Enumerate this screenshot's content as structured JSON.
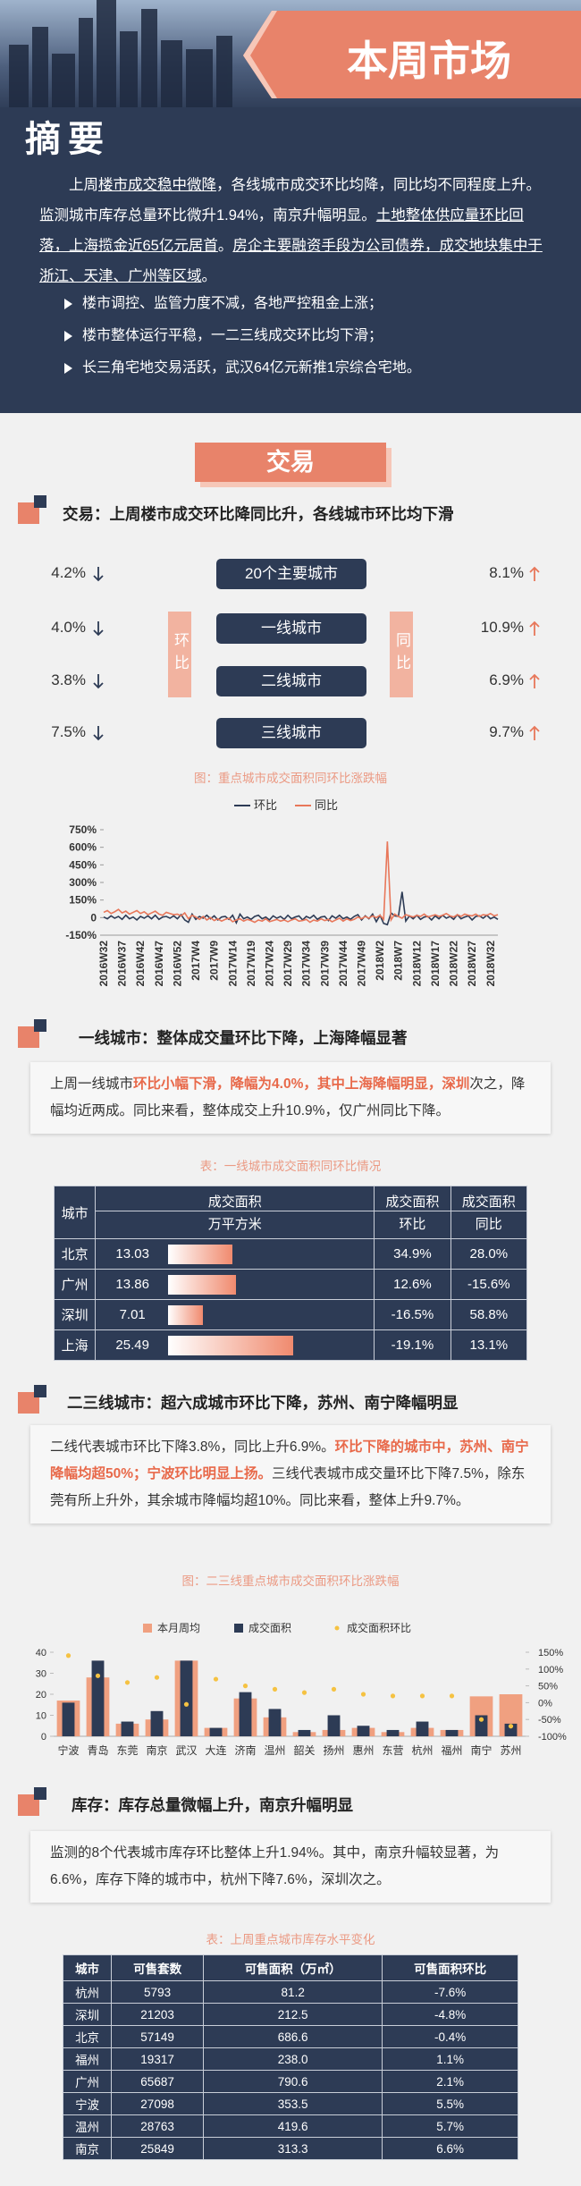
{
  "header": {
    "title": "本周市场",
    "subtitle": "摘要"
  },
  "summary": {
    "paragraph": [
      {
        "text": "上周"
      },
      {
        "text": "楼市成交稳中微降",
        "underline": true
      },
      {
        "text": "，各线城市成交环比均降，同比均不同程度上升。监测城市库存总量环比微升1.94%，南京升幅明显。"
      },
      {
        "text": "土地整体供应量环比回落，上海揽金近65亿元居首",
        "underline": true
      },
      {
        "text": "。"
      },
      {
        "text": "房企主要融资手段为公司债券，成交地块集中于浙江、天津、广州等区域",
        "underline": true
      },
      {
        "text": "。"
      }
    ],
    "bullets": [
      "楼市调控、监管力度不减，各地严控租金上涨；",
      "楼市整体运行平稳，一二三线成交环比均下滑；",
      "长三角宅地交易活跃，武汉64亿元新推1宗综合宅地。"
    ]
  },
  "trade": {
    "tab": "交易",
    "heading": "交易：上周楼市成交环比降同比升，各线城市环比均下滑",
    "mom_tag": "环比",
    "yoy_tag": "同比",
    "rows": [
      {
        "mom": "4.2%",
        "label": "20个主要城市",
        "yoy": "8.1%"
      },
      {
        "mom": "4.0%",
        "label": "一线城市",
        "yoy": "10.9%"
      },
      {
        "mom": "3.8%",
        "label": "二线城市",
        "yoy": "6.9%"
      },
      {
        "mom": "7.5%",
        "label": "三线城市",
        "yoy": "9.7%"
      }
    ],
    "caption": "图：重点城市成交面积同环比涨跌幅"
  },
  "chart_data": [
    {
      "type": "line",
      "categories": [
        "2016W32",
        null,
        null,
        null,
        null,
        "2016W37",
        null,
        null,
        null,
        null,
        "2016W42",
        null,
        null,
        null,
        null,
        "2016W47",
        null,
        null,
        null,
        null,
        "2016W52",
        null,
        null,
        null,
        null,
        "2017W4",
        null,
        null,
        null,
        null,
        "2017W9",
        null,
        null,
        null,
        null,
        "2017W14",
        null,
        null,
        null,
        null,
        "2017W19",
        null,
        null,
        null,
        null,
        "2017W24",
        null,
        null,
        null,
        null,
        "2017W29",
        null,
        null,
        null,
        null,
        "2017W34",
        null,
        null,
        null,
        null,
        "2017W39",
        null,
        null,
        null,
        null,
        "2017W44",
        null,
        null,
        null,
        null,
        "2017W49",
        null,
        null,
        null,
        null,
        "2018W2",
        null,
        null,
        null,
        null,
        "2018W7",
        null,
        null,
        null,
        null,
        "2018W12",
        null,
        null,
        null,
        null,
        "2018W17",
        null,
        null,
        null,
        null,
        "2018W22",
        null,
        null,
        null,
        null,
        "2018W27",
        null,
        null,
        null,
        null,
        "2018W32",
        null,
        null
      ],
      "series": [
        {
          "name": "环比",
          "color": "#2d3b55",
          "values": [
            5,
            -10,
            15,
            -5,
            10,
            -15,
            20,
            -10,
            5,
            -20,
            10,
            -5,
            15,
            -10,
            20,
            -15,
            5,
            10,
            -5,
            15,
            -10,
            25,
            -20,
            -40,
            30,
            -15,
            10,
            -5,
            20,
            -10,
            15,
            -20,
            5,
            10,
            -15,
            20,
            -45,
            30,
            -10,
            5,
            -15,
            10,
            20,
            -10,
            5,
            -20,
            15,
            -5,
            10,
            -15,
            20,
            -10,
            5,
            15,
            -20,
            10,
            -5,
            20,
            -15,
            5,
            10,
            -25,
            15,
            -5,
            20,
            -10,
            5,
            -15,
            10,
            25,
            -20,
            15,
            -10,
            30,
            -35,
            20,
            -50,
            -60,
            40,
            15,
            10,
            220,
            -30,
            15,
            -10,
            20,
            -15,
            5,
            10,
            -20,
            15,
            -10,
            20,
            -5,
            10,
            -15,
            25,
            -10,
            5,
            15,
            -20,
            10,
            15,
            -5,
            20,
            -10,
            5,
            -15
          ]
        },
        {
          "name": "同比",
          "color": "#e8775a",
          "values": [
            45,
            60,
            35,
            50,
            70,
            40,
            55,
            30,
            45,
            60,
            35,
            50,
            25,
            40,
            55,
            30,
            20,
            45,
            35,
            25,
            30,
            15,
            40,
            -10,
            20,
            5,
            -15,
            10,
            -20,
            0,
            -25,
            -10,
            -30,
            -15,
            -5,
            -35,
            -20,
            -10,
            -30,
            -15,
            -25,
            -40,
            -20,
            -30,
            -10,
            -35,
            -25,
            -15,
            -30,
            -20,
            -35,
            -20,
            -10,
            -30,
            -25,
            -15,
            -40,
            -20,
            -30,
            -10,
            -25,
            -15,
            -35,
            -20,
            -5,
            -30,
            -10,
            -25,
            -15,
            5,
            -10,
            10,
            -5,
            15,
            0,
            20,
            -15,
            650,
            -20,
            30,
            10,
            -5,
            25,
            15,
            5,
            20,
            10,
            30,
            5,
            15,
            25,
            10,
            20,
            35,
            15,
            5,
            25,
            10,
            30,
            20,
            15,
            30,
            10,
            25,
            20,
            35,
            15,
            25
          ]
        }
      ],
      "ylim": [
        -150,
        750
      ],
      "yticks": [
        {
          "value": -150,
          "label": "-150%"
        },
        0,
        {
          "value": 150,
          "label": "150%"
        },
        {
          "value": 300,
          "label": "300%"
        },
        {
          "value": 450,
          "label": "450%"
        },
        {
          "value": 600,
          "label": "600%"
        },
        {
          "value": 750,
          "label": "750%"
        }
      ]
    },
    {
      "type": "bar",
      "categories": [
        "宁波",
        "青岛",
        "东莞",
        "南京",
        "武汉",
        "大连",
        "济南",
        "温州",
        "韶关",
        "扬州",
        "惠州",
        "东营",
        "杭州",
        "福州",
        "南宁",
        "苏州"
      ],
      "series": [
        {
          "name": "本月周均",
          "color": "#f0a080",
          "values": [
            17,
            28,
            6,
            8,
            36,
            4,
            18,
            9,
            2,
            3,
            4,
            2,
            4,
            3,
            19,
            20
          ]
        },
        {
          "name": "成交面积",
          "color": "#2d3b55",
          "values": [
            16,
            36,
            7,
            12,
            36,
            4,
            21,
            13,
            3,
            10,
            5,
            3,
            7,
            3,
            10,
            6
          ]
        },
        {
          "name": "成交面积环比",
          "color": "#f5c242",
          "axis": "y2",
          "type": "scatter",
          "values": [
            140,
            80,
            60,
            75,
            -5,
            70,
            50,
            40,
            30,
            40,
            25,
            20,
            20,
            20,
            -50,
            -70
          ]
        }
      ],
      "ylim": [
        0,
        40
      ],
      "yticks": [
        0,
        10,
        20,
        30,
        40
      ],
      "y2lim": [
        -100,
        150
      ],
      "y2ticks": [
        {
          "value": -100,
          "label": "-100%"
        },
        {
          "value": -50,
          "label": "-50%"
        },
        {
          "value": 0,
          "label": "0%"
        },
        {
          "value": 50,
          "label": "50%"
        },
        {
          "value": 100,
          "label": "100%"
        },
        {
          "value": 150,
          "label": "150%"
        }
      ]
    }
  ],
  "tier1": {
    "heading": "一线城市：整体成交量环比下降，上海降幅显著",
    "text": [
      {
        "text": "上周一线城市"
      },
      {
        "text": "环比小幅下滑，降幅为4.0%，其中上海降幅明显，深圳",
        "highlight": true
      },
      {
        "text": "次之，降幅均近两成。同比来看，整体成交上升10.9%，仅广州同比下降。"
      }
    ],
    "caption": "表：一线城市成交面积同环比情况",
    "table": {
      "columns": [
        {
          "title": "城市"
        },
        {
          "title": "成交面积",
          "unit": "万平方米"
        },
        {
          "title": "成交面积",
          "unit": "环比"
        },
        {
          "title": "成交面积",
          "unit": "同比"
        }
      ],
      "rows": [
        [
          "北京",
          13.03,
          "34.9%",
          "28.0%"
        ],
        [
          "广州",
          13.86,
          "12.6%",
          "-15.6%"
        ],
        [
          "深圳",
          7.01,
          "-16.5%",
          "58.8%"
        ],
        [
          "上海",
          25.49,
          "-19.1%",
          "13.1%"
        ]
      ]
    }
  },
  "tier2": {
    "heading": "二三线城市：超六成城市环比下降，苏州、南宁降幅明显",
    "text": [
      {
        "text": "二线代表城市环比下降3.8%，同比上升6.9%。"
      },
      {
        "text": "环比下降的城市中，苏州、南宁降幅均超50%；宁波环比明显上扬。",
        "highlight": true
      },
      {
        "text": "三线代表城市成交量环比下降7.5%，除东莞有所上升外，其余城市降幅均超10%。同比来看，整体上升9.7%。"
      }
    ],
    "caption": "图：二三线重点城市成交面积环比涨跌幅"
  },
  "stock": {
    "heading": "库存：库存总量微幅上升，南京升幅明显",
    "text": [
      {
        "text": "监测的8个代表城市库存环比整体上升1.94%。其中，南京升幅较显著，为6.6%，库存下降的城市中，杭州下降7.6%，深圳次之。"
      }
    ],
    "caption": "表：上周重点城市库存水平变化",
    "table": {
      "columns": [
        {
          "title": "城市"
        },
        {
          "title": "可售套数"
        },
        {
          "title": "可售面积（万㎡）"
        },
        {
          "title": "可售面积环比"
        }
      ],
      "rows": [
        [
          "杭州",
          "5793",
          "81.2",
          "-7.6%"
        ],
        [
          "深圳",
          "21203",
          "212.5",
          "-4.8%"
        ],
        [
          "北京",
          "57149",
          "686.6",
          "-0.4%"
        ],
        [
          "福州",
          "19317",
          "238.0",
          "1.1%"
        ],
        [
          "广州",
          "65687",
          "790.6",
          "2.1%"
        ],
        [
          "宁波",
          "27098",
          "353.5",
          "5.5%"
        ],
        [
          "温州",
          "28763",
          "419.6",
          "5.7%"
        ],
        [
          "南京",
          "25849",
          "313.3",
          "6.6%"
        ]
      ]
    }
  }
}
